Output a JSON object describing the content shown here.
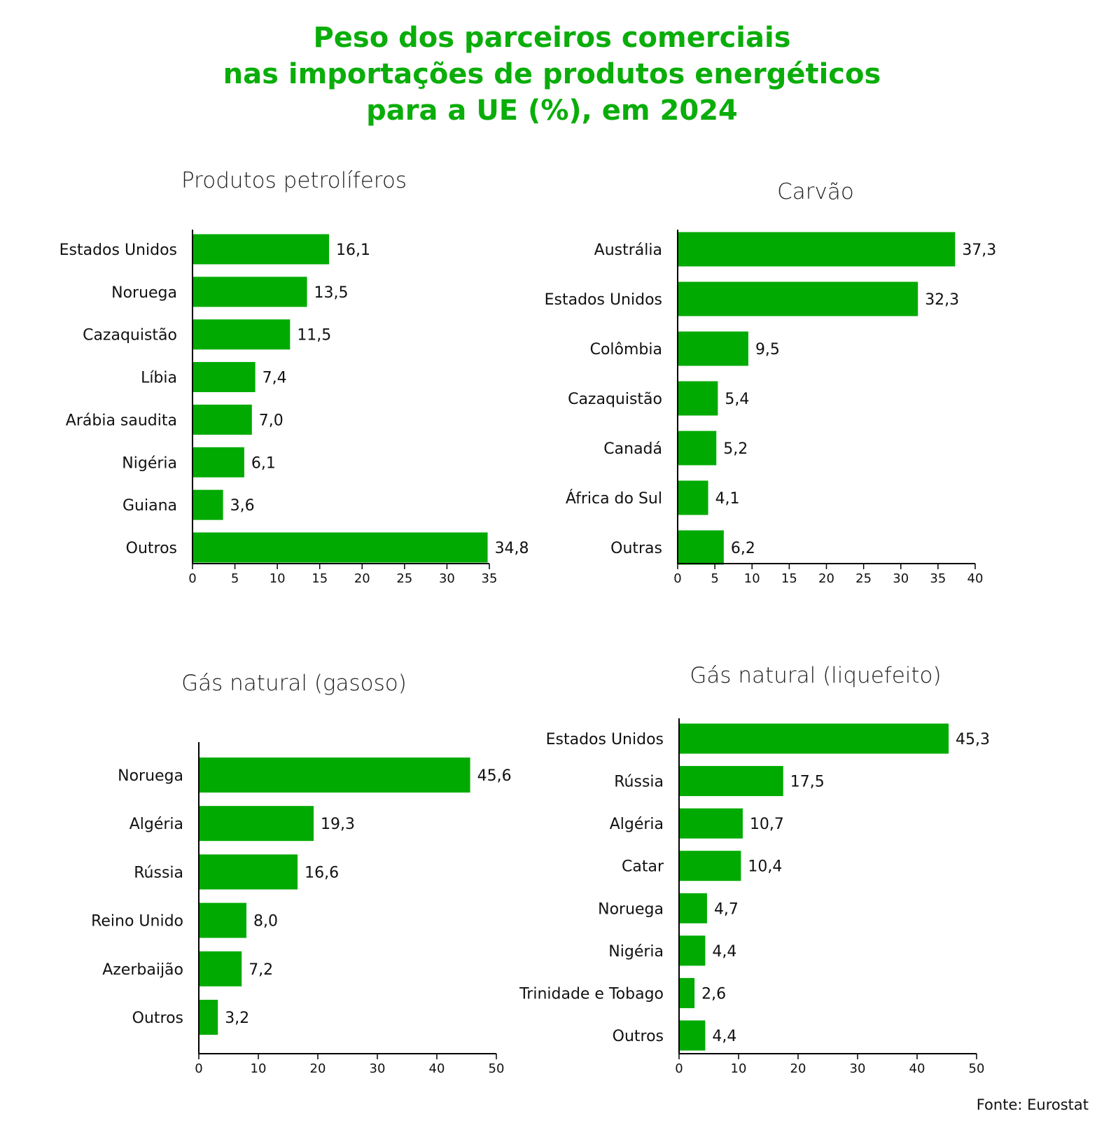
{
  "title_lines": [
    "Peso dos parceiros comerciais",
    "nas importações de produtos energéticos",
    "para a UE (%), em 2024"
  ],
  "source": "Fonte: Eurostat",
  "colors": {
    "bar": "#00aa00",
    "title": "#0aad0a",
    "text": "#111111",
    "axis": "#000000"
  },
  "chart_data": [
    {
      "type": "bar",
      "orientation": "horizontal",
      "title": "Produtos petrolíferos",
      "categories": [
        "Estados Unidos",
        "Noruega",
        "Cazaquistão",
        "Líbia",
        "Arábia saudita",
        "Nigéria",
        "Guiana",
        "Outros"
      ],
      "values": [
        16.1,
        13.5,
        11.5,
        7.4,
        7.0,
        6.1,
        3.6,
        34.8
      ],
      "value_labels": [
        "16,1",
        "13,5",
        "11,5",
        "7,4",
        "7,0",
        "6,1",
        "3,6",
        "34,8"
      ],
      "xlim": [
        0,
        35
      ],
      "xticks": [
        0,
        5,
        10,
        15,
        20,
        25,
        30,
        35
      ],
      "grid": false
    },
    {
      "type": "bar",
      "orientation": "horizontal",
      "title": "Carvão",
      "categories": [
        "Austrália",
        "Estados Unidos",
        "Colômbia",
        "Cazaquistão",
        "Canadá",
        "África do Sul",
        "Outras"
      ],
      "values": [
        37.3,
        32.3,
        9.5,
        5.4,
        5.2,
        4.1,
        6.2
      ],
      "value_labels": [
        "37,3",
        "32,3",
        "9,5",
        "5,4",
        "5,2",
        "4,1",
        "6,2"
      ],
      "xlim": [
        0,
        40
      ],
      "xticks": [
        0,
        5,
        10,
        15,
        20,
        25,
        30,
        35,
        40
      ],
      "grid": false
    },
    {
      "type": "bar",
      "orientation": "horizontal",
      "title": "Gás natural (gasoso)",
      "categories": [
        "Noruega",
        "Algéria",
        "Rússia",
        "Reino Unido",
        "Azerbaijão",
        "Outros"
      ],
      "values": [
        45.6,
        19.3,
        16.6,
        8.0,
        7.2,
        3.2
      ],
      "value_labels": [
        "45,6",
        "19,3",
        "16,6",
        "8,0",
        "7,2",
        "3,2"
      ],
      "xlim": [
        0,
        50
      ],
      "xticks": [
        0,
        10,
        20,
        30,
        40,
        50
      ],
      "grid": false
    },
    {
      "type": "bar",
      "orientation": "horizontal",
      "title": "Gás natural (liquefeito)",
      "categories": [
        "Estados Unidos",
        "Rússia",
        "Algéria",
        "Catar",
        "Noruega",
        "Nigéria",
        "Trinidade e Tobago",
        "Outros"
      ],
      "values": [
        45.3,
        17.5,
        10.7,
        10.4,
        4.7,
        4.4,
        2.6,
        4.4
      ],
      "value_labels": [
        "45,3",
        "17,5",
        "10,7",
        "10,4",
        "4,7",
        "4,4",
        "2,6",
        "4,4"
      ],
      "xlim": [
        0,
        50
      ],
      "xticks": [
        0,
        10,
        20,
        30,
        40,
        50
      ],
      "grid": false
    }
  ]
}
